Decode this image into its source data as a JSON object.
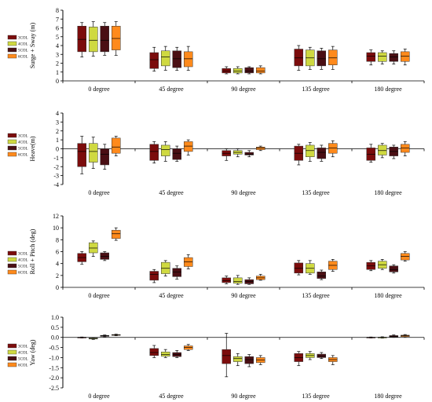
{
  "chart_data": [
    {
      "type": "box",
      "ylabel": "Surge + Sway (m)",
      "ylim": [
        0,
        8
      ],
      "yticks": [
        0,
        1,
        2,
        3,
        4,
        5,
        6,
        7,
        8
      ],
      "categories": [
        "0 degree",
        "45 degree",
        "90 degree",
        "135 degree",
        "180 degree"
      ],
      "series": [
        {
          "name": "3COL",
          "color": "#7b0c0c",
          "boxes": [
            {
              "min": 2.7,
              "q1": 3.3,
              "med": 4.7,
              "q3": 6.2,
              "max": 6.6
            },
            {
              "min": 1.1,
              "q1": 1.4,
              "med": 2.4,
              "q3": 3.2,
              "max": 3.8
            },
            {
              "min": 0.8,
              "q1": 0.9,
              "med": 1.1,
              "q3": 1.4,
              "max": 1.6
            },
            {
              "min": 1.2,
              "q1": 1.7,
              "med": 2.6,
              "q3": 3.6,
              "max": 4.0
            },
            {
              "min": 1.8,
              "q1": 2.2,
              "med": 2.8,
              "q3": 3.2,
              "max": 3.5
            }
          ]
        },
        {
          "name": "4COL",
          "color": "#cfd941",
          "boxes": [
            {
              "min": 2.8,
              "q1": 3.3,
              "med": 4.6,
              "q3": 6.1,
              "max": 6.7
            },
            {
              "min": 1.2,
              "q1": 1.7,
              "med": 2.7,
              "q3": 3.4,
              "max": 3.9
            },
            {
              "min": 0.8,
              "q1": 0.9,
              "med": 1.1,
              "q3": 1.4,
              "max": 1.6
            },
            {
              "min": 1.3,
              "q1": 1.7,
              "med": 2.6,
              "q3": 3.5,
              "max": 3.8
            },
            {
              "min": 1.9,
              "q1": 2.2,
              "med": 2.8,
              "q3": 3.2,
              "max": 3.4
            }
          ]
        },
        {
          "name": "5COL",
          "color": "#4a0f14",
          "boxes": [
            {
              "min": 2.9,
              "q1": 3.3,
              "med": 4.6,
              "q3": 6.2,
              "max": 6.6
            },
            {
              "min": 1.2,
              "q1": 1.5,
              "med": 2.5,
              "q3": 3.4,
              "max": 3.8
            },
            {
              "min": 0.8,
              "q1": 0.9,
              "med": 1.1,
              "q3": 1.5,
              "max": 1.6
            },
            {
              "min": 1.3,
              "q1": 1.7,
              "med": 2.5,
              "q3": 3.4,
              "max": 3.7
            },
            {
              "min": 1.9,
              "q1": 2.2,
              "med": 2.7,
              "q3": 3.1,
              "max": 3.4
            }
          ]
        },
        {
          "name": "6COL",
          "color": "#ff8a1c",
          "boxes": [
            {
              "min": 2.9,
              "q1": 3.5,
              "med": 4.8,
              "q3": 6.2,
              "max": 6.7
            },
            {
              "min": 1.2,
              "q1": 1.6,
              "med": 2.5,
              "q3": 3.3,
              "max": 3.9
            },
            {
              "min": 0.8,
              "q1": 0.9,
              "med": 1.1,
              "q3": 1.5,
              "max": 1.7
            },
            {
              "min": 1.3,
              "q1": 1.8,
              "med": 2.6,
              "q3": 3.5,
              "max": 3.9
            },
            {
              "min": 1.8,
              "q1": 2.2,
              "med": 2.8,
              "q3": 3.3,
              "max": 3.6
            }
          ]
        }
      ],
      "legend": "left"
    },
    {
      "type": "box",
      "ylabel": "Heave(m)",
      "ylim": [
        -4,
        4
      ],
      "yticks": [
        -4,
        -3,
        -2,
        -1,
        0,
        1,
        2,
        3,
        4
      ],
      "categories": [
        "0 degree",
        "45 degree",
        "90 degree",
        "135 degree",
        "180 degree"
      ],
      "series": [
        {
          "name": "3COL",
          "color": "#7b0c0c",
          "boxes": [
            {
              "min": -2.8,
              "q1": -2.0,
              "med": -0.3,
              "q3": 0.6,
              "max": 1.4
            },
            {
              "min": -1.6,
              "q1": -1.3,
              "med": -0.3,
              "q3": 0.5,
              "max": 0.8
            },
            {
              "min": -1.3,
              "q1": -0.8,
              "med": -0.5,
              "q3": -0.2,
              "max": 0.0
            },
            {
              "min": -1.8,
              "q1": -1.3,
              "med": -0.5,
              "q3": 0.3,
              "max": 0.5
            },
            {
              "min": -1.5,
              "q1": -1.3,
              "med": -0.6,
              "q3": 0.1,
              "max": 0.5
            }
          ]
        },
        {
          "name": "4COL",
          "color": "#cfd941",
          "boxes": [
            {
              "min": -2.2,
              "q1": -1.5,
              "med": -0.3,
              "q3": 0.6,
              "max": 1.3
            },
            {
              "min": -1.4,
              "q1": -0.8,
              "med": -0.1,
              "q3": 0.4,
              "max": 0.8
            },
            {
              "min": -0.9,
              "q1": -0.6,
              "med": -0.4,
              "q3": -0.2,
              "max": 0.0
            },
            {
              "min": -1.4,
              "q1": -0.9,
              "med": -0.2,
              "q3": 0.4,
              "max": 0.7
            },
            {
              "min": -1.0,
              "q1": -0.7,
              "med": -0.2,
              "q3": 0.4,
              "max": 0.6
            }
          ]
        },
        {
          "name": "5COL",
          "color": "#4a0f14",
          "boxes": [
            {
              "min": -2.3,
              "q1": -1.8,
              "med": -0.6,
              "q3": 0.0,
              "max": 0.5
            },
            {
              "min": -1.4,
              "q1": -1.2,
              "med": -0.5,
              "q3": 0.0,
              "max": 0.3
            },
            {
              "min": -0.9,
              "q1": -0.7,
              "med": -0.6,
              "q3": -0.4,
              "max": -0.2
            },
            {
              "min": -1.4,
              "q1": -1.1,
              "med": -0.4,
              "q3": 0.1,
              "max": 0.4
            },
            {
              "min": -1.1,
              "q1": -0.8,
              "med": -0.3,
              "q3": 0.2,
              "max": 0.4
            }
          ]
        },
        {
          "name": "6COL",
          "color": "#ff8a1c",
          "boxes": [
            {
              "min": -0.8,
              "q1": -0.5,
              "med": 0.2,
              "q3": 1.2,
              "max": 1.4
            },
            {
              "min": -0.7,
              "q1": -0.3,
              "med": 0.3,
              "q3": 0.8,
              "max": 1.0
            },
            {
              "min": -0.2,
              "q1": -0.1,
              "med": 0.1,
              "q3": 0.2,
              "max": 0.3
            },
            {
              "min": -0.9,
              "q1": -0.5,
              "med": 0.1,
              "q3": 0.6,
              "max": 0.9
            },
            {
              "min": -0.8,
              "q1": -0.4,
              "med": 0.1,
              "q3": 0.5,
              "max": 0.8
            }
          ]
        }
      ],
      "legend": "left"
    },
    {
      "type": "box",
      "ylabel": "Roll + Pitch (deg)",
      "ylim": [
        0,
        12
      ],
      "yticks": [
        0,
        2,
        4,
        6,
        8,
        10,
        12
      ],
      "categories": [
        "0 degree",
        "45 degree",
        "90 degree",
        "135 degree",
        "180 degree"
      ],
      "series": [
        {
          "name": "3COL",
          "color": "#7b0c0c",
          "boxes": [
            {
              "min": 3.9,
              "q1": 4.3,
              "med": 5.0,
              "q3": 5.7,
              "max": 6.0
            },
            {
              "min": 0.8,
              "q1": 1.2,
              "med": 2.2,
              "q3": 2.7,
              "max": 3.0
            },
            {
              "min": 0.6,
              "q1": 0.8,
              "med": 1.1,
              "q3": 1.6,
              "max": 1.9
            },
            {
              "min": 2.1,
              "q1": 2.4,
              "med": 3.2,
              "q3": 4.1,
              "max": 4.5
            },
            {
              "min": 2.8,
              "q1": 3.0,
              "med": 3.6,
              "q3": 4.2,
              "max": 4.5
            }
          ]
        },
        {
          "name": "4COL",
          "color": "#cfd941",
          "boxes": [
            {
              "min": 5.2,
              "q1": 5.8,
              "med": 6.6,
              "q3": 7.5,
              "max": 7.8
            },
            {
              "min": 1.9,
              "q1": 2.3,
              "med": 3.2,
              "q3": 4.2,
              "max": 4.5
            },
            {
              "min": 0.5,
              "q1": 0.7,
              "med": 1.0,
              "q3": 1.6,
              "max": 2.0
            },
            {
              "min": 2.2,
              "q1": 2.4,
              "med": 3.2,
              "q3": 4.0,
              "max": 4.5
            },
            {
              "min": 3.0,
              "q1": 3.2,
              "med": 3.8,
              "q3": 4.4,
              "max": 4.7
            }
          ]
        },
        {
          "name": "5COL",
          "color": "#4a0f14",
          "boxes": [
            {
              "min": 4.5,
              "q1": 4.7,
              "med": 5.2,
              "q3": 5.8,
              "max": 6.0
            },
            {
              "min": 1.4,
              "q1": 1.8,
              "med": 2.6,
              "q3": 3.2,
              "max": 3.6
            },
            {
              "min": 0.5,
              "q1": 0.6,
              "med": 1.0,
              "q3": 1.3,
              "max": 1.6
            },
            {
              "min": 1.3,
              "q1": 1.5,
              "med": 1.9,
              "q3": 2.6,
              "max": 2.9
            },
            {
              "min": 2.4,
              "q1": 2.6,
              "med": 3.0,
              "q3": 3.6,
              "max": 3.8
            }
          ]
        },
        {
          "name": "6COL",
          "color": "#ff8a1c",
          "boxes": [
            {
              "min": 7.9,
              "q1": 8.2,
              "med": 9.0,
              "q3": 9.6,
              "max": 10.0
            },
            {
              "min": 3.1,
              "q1": 3.5,
              "med": 4.3,
              "q3": 5.0,
              "max": 5.5
            },
            {
              "min": 1.2,
              "q1": 1.3,
              "med": 1.6,
              "q3": 1.9,
              "max": 2.2
            },
            {
              "min": 2.7,
              "q1": 3.0,
              "med": 3.7,
              "q3": 4.4,
              "max": 4.7
            },
            {
              "min": 4.4,
              "q1": 4.6,
              "med": 5.2,
              "q3": 5.7,
              "max": 6.0
            }
          ]
        }
      ],
      "legend": "left"
    },
    {
      "type": "box",
      "ylabel": "Yaw (deg)",
      "ylim": [
        -2.5,
        1.0
      ],
      "yticks": [
        -2.5,
        -2.0,
        -1.5,
        -1.0,
        -0.5,
        0.0,
        0.5,
        1.0
      ],
      "categories": [
        "0 degree",
        "45 degree",
        "90 degree",
        "135 degree",
        "180 degree"
      ],
      "series": [
        {
          "name": "3COL",
          "color": "#7b0c0c",
          "boxes": [
            {
              "min": -0.03,
              "q1": -0.02,
              "med": 0.0,
              "q3": 0.01,
              "max": 0.02
            },
            {
              "min": -1.0,
              "q1": -0.9,
              "med": -0.75,
              "q3": -0.55,
              "max": -0.4
            },
            {
              "min": -1.95,
              "q1": -1.3,
              "med": -0.9,
              "q3": -0.6,
              "max": 0.2
            },
            {
              "min": -1.4,
              "q1": -1.2,
              "med": -1.0,
              "q3": -0.8,
              "max": -0.7
            },
            {
              "min": -0.03,
              "q1": -0.02,
              "med": 0.0,
              "q3": 0.01,
              "max": 0.02
            }
          ]
        },
        {
          "name": "4COL",
          "color": "#cfd941",
          "boxes": [
            {
              "min": -0.1,
              "q1": -0.08,
              "med": -0.05,
              "q3": -0.03,
              "max": -0.01
            },
            {
              "min": -1.0,
              "q1": -0.93,
              "med": -0.85,
              "q3": -0.72,
              "max": -0.6
            },
            {
              "min": -1.4,
              "q1": -1.2,
              "med": -1.05,
              "q3": -0.95,
              "max": -0.8
            },
            {
              "min": -1.1,
              "q1": -1.0,
              "med": -0.9,
              "q3": -0.8,
              "max": -0.7
            },
            {
              "min": -0.04,
              "q1": -0.03,
              "med": 0.0,
              "q3": 0.01,
              "max": 0.03
            }
          ]
        },
        {
          "name": "5COL",
          "color": "#4a0f14",
          "boxes": [
            {
              "min": 0.03,
              "q1": 0.05,
              "med": 0.08,
              "q3": 0.1,
              "max": 0.12
            },
            {
              "min": -1.0,
              "q1": -0.95,
              "med": -0.85,
              "q3": -0.75,
              "max": -0.65
            },
            {
              "min": -1.45,
              "q1": -1.3,
              "med": -1.1,
              "q3": -0.95,
              "max": -0.85
            },
            {
              "min": -1.05,
              "q1": -1.0,
              "med": -0.92,
              "q3": -0.83,
              "max": -0.75
            },
            {
              "min": 0.0,
              "q1": 0.02,
              "med": 0.06,
              "q3": 0.09,
              "max": 0.12
            }
          ]
        },
        {
          "name": "6COL",
          "color": "#ff8a1c",
          "boxes": [
            {
              "min": 0.08,
              "q1": 0.1,
              "med": 0.12,
              "q3": 0.14,
              "max": 0.16
            },
            {
              "min": -0.65,
              "q1": -0.6,
              "med": -0.5,
              "q3": -0.42,
              "max": -0.35
            },
            {
              "min": -1.35,
              "q1": -1.25,
              "med": -1.12,
              "q3": -1.0,
              "max": -0.9
            },
            {
              "min": -1.35,
              "q1": -1.2,
              "med": -1.1,
              "q3": -1.0,
              "max": -0.9
            },
            {
              "min": 0.0,
              "q1": 0.04,
              "med": 0.08,
              "q3": 0.11,
              "max": 0.14
            }
          ]
        }
      ],
      "legend": "left"
    }
  ]
}
